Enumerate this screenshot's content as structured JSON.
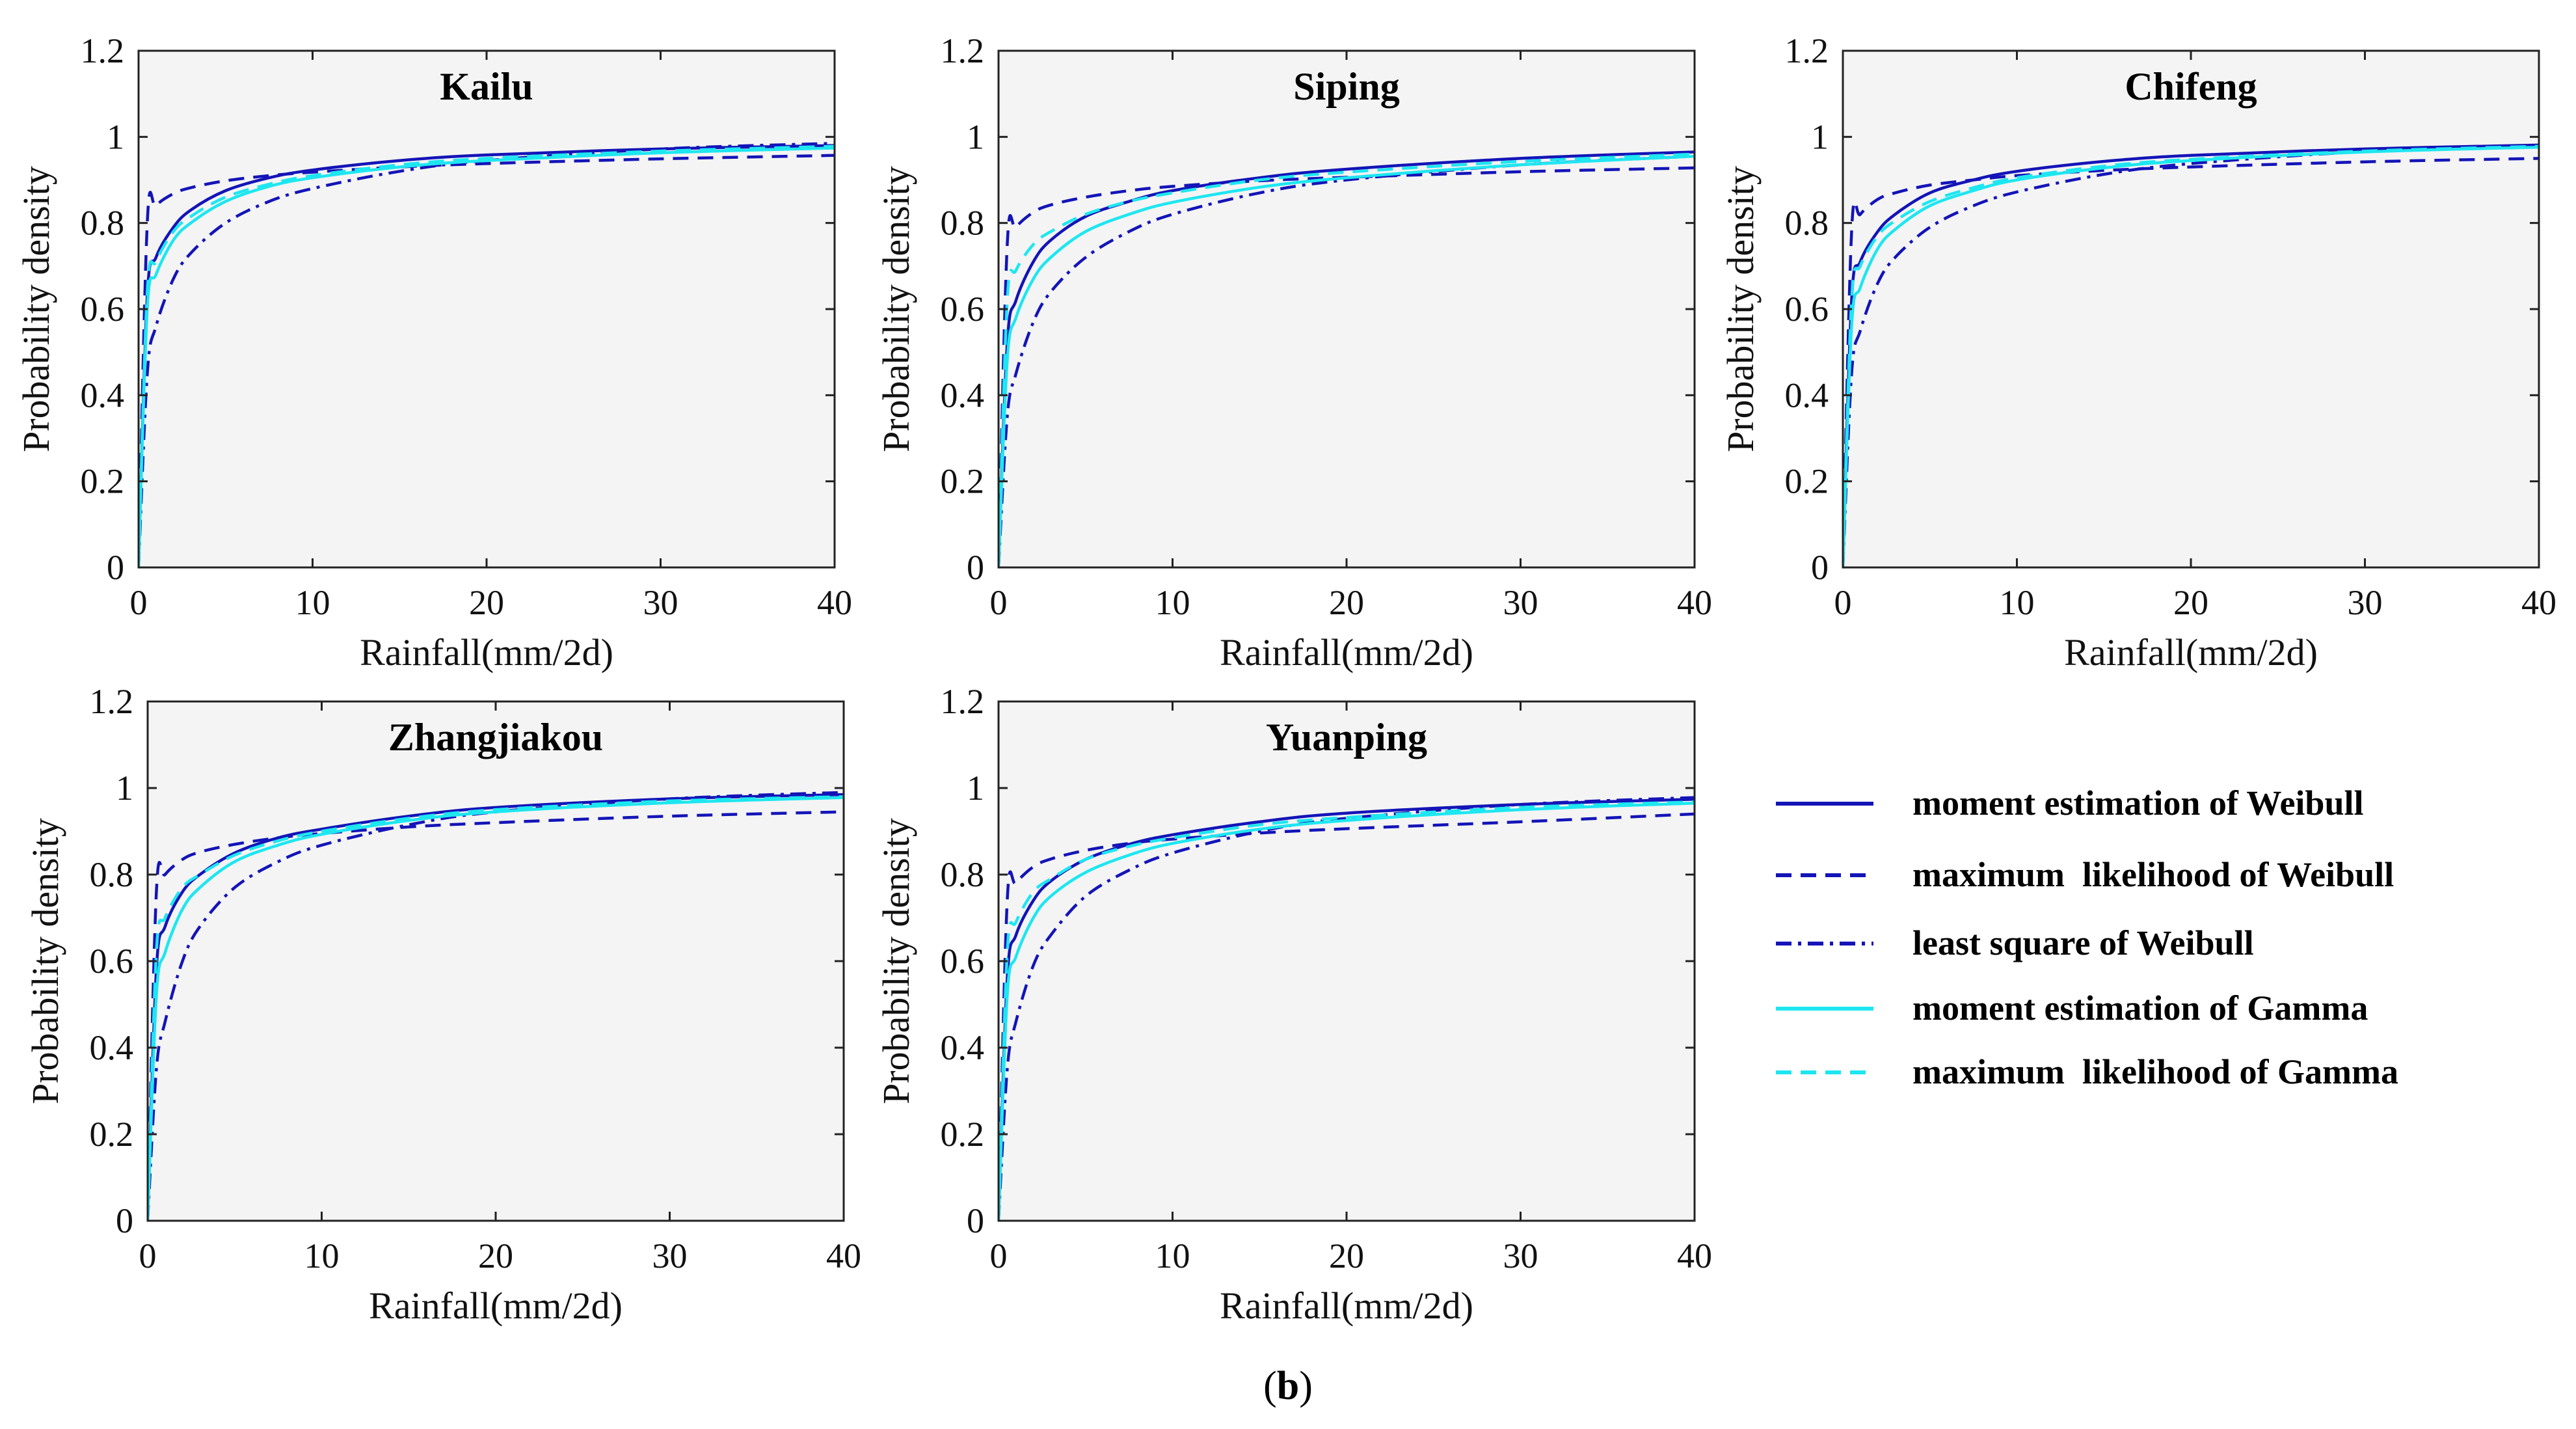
{
  "figure": {
    "caption_letter": "b"
  },
  "colors": {
    "dark_blue": "#1414b8",
    "cyan": "#1ee6f0",
    "panel_bg": "#f4f4f4",
    "axis": "#222222"
  },
  "legend": [
    {
      "label": "moment estimation of Weibull",
      "color": "#1414b8",
      "style": "solid"
    },
    {
      "label": "maximum  likelihood of Weibull",
      "color": "#1414b8",
      "style": "dashed"
    },
    {
      "label": "least square of Weibull",
      "color": "#1414b8",
      "style": "dashdot"
    },
    {
      "label": "moment estimation of Gamma",
      "color": "#1ee6f0",
      "style": "solid"
    },
    {
      "label": "maximum  likelihood of Gamma",
      "color": "#1ee6f0",
      "style": "dashed"
    }
  ],
  "chart_data": [
    {
      "type": "line",
      "title": "Kailu",
      "xlabel": "Rainfall(mm/2d)",
      "ylabel": "Probability density",
      "xlim": [
        0,
        40
      ],
      "ylim": [
        0,
        1.2
      ],
      "xticks": [
        "0",
        "10",
        "20",
        "30",
        "40"
      ],
      "yticks": [
        "0",
        "0.2",
        "0.4",
        "0.6",
        "0.8",
        "1",
        "1.2"
      ],
      "x": [
        0,
        0.5,
        1,
        2,
        3,
        5,
        7.5,
        10,
        15,
        20,
        30,
        40
      ],
      "series": [
        {
          "name": "moment estimation of Weibull",
          "values": [
            0,
            0.63,
            0.72,
            0.79,
            0.83,
            0.875,
            0.905,
            0.923,
            0.945,
            0.958,
            0.972,
            0.98
          ]
        },
        {
          "name": "maximum  likelihood of Weibull",
          "values": [
            0,
            0.8,
            0.84,
            0.868,
            0.882,
            0.898,
            0.91,
            0.918,
            0.93,
            0.938,
            0.949,
            0.957
          ]
        },
        {
          "name": "least square of Weibull",
          "values": [
            0,
            0.45,
            0.56,
            0.67,
            0.73,
            0.8,
            0.85,
            0.88,
            0.92,
            0.945,
            0.972,
            0.985
          ]
        },
        {
          "name": "moment estimation of Gamma",
          "values": [
            0,
            0.6,
            0.68,
            0.76,
            0.8,
            0.85,
            0.885,
            0.905,
            0.93,
            0.945,
            0.963,
            0.974
          ]
        },
        {
          "name": "maximum  likelihood of Gamma",
          "values": [
            0,
            0.64,
            0.71,
            0.78,
            0.815,
            0.86,
            0.89,
            0.91,
            0.935,
            0.95,
            0.967,
            0.978
          ]
        }
      ]
    },
    {
      "type": "line",
      "title": "Siping",
      "xlabel": "Rainfall(mm/2d)",
      "ylabel": "Probability density",
      "xlim": [
        0,
        40
      ],
      "ylim": [
        0,
        1.2
      ],
      "xticks": [
        "0",
        "10",
        "20",
        "30",
        "40"
      ],
      "yticks": [
        "0",
        "0.2",
        "0.4",
        "0.6",
        "0.8",
        "1",
        "1.2"
      ],
      "x": [
        0,
        0.5,
        1,
        2,
        3,
        5,
        7.5,
        10,
        15,
        20,
        30,
        40
      ],
      "series": [
        {
          "name": "moment estimation of Weibull",
          "values": [
            0,
            0.52,
            0.62,
            0.71,
            0.76,
            0.815,
            0.85,
            0.875,
            0.905,
            0.925,
            0.95,
            0.965
          ]
        },
        {
          "name": "maximum  likelihood of Weibull",
          "values": [
            0,
            0.75,
            0.79,
            0.825,
            0.842,
            0.86,
            0.875,
            0.885,
            0.898,
            0.906,
            0.919,
            0.928
          ]
        },
        {
          "name": "least square of Weibull",
          "values": [
            0,
            0.35,
            0.45,
            0.57,
            0.64,
            0.72,
            0.78,
            0.82,
            0.87,
            0.9,
            0.935,
            0.955
          ]
        },
        {
          "name": "moment estimation of Gamma",
          "values": [
            0,
            0.48,
            0.58,
            0.67,
            0.72,
            0.78,
            0.82,
            0.848,
            0.883,
            0.905,
            0.935,
            0.955
          ]
        },
        {
          "name": "maximum  likelihood of Gamma",
          "values": [
            0,
            0.62,
            0.69,
            0.75,
            0.78,
            0.82,
            0.85,
            0.87,
            0.9,
            0.918,
            0.943,
            0.96
          ]
        }
      ]
    },
    {
      "type": "line",
      "title": "Chifeng",
      "xlabel": "Rainfall(mm/2d)",
      "ylabel": "Probability density",
      "xlim": [
        0,
        40
      ],
      "ylim": [
        0,
        1.2
      ],
      "xticks": [
        "0",
        "10",
        "20",
        "30",
        "40"
      ],
      "yticks": [
        "0",
        "0.2",
        "0.4",
        "0.6",
        "0.8",
        "1",
        "1.2"
      ],
      "x": [
        0,
        0.5,
        1,
        2,
        3,
        5,
        7.5,
        10,
        15,
        20,
        30,
        40
      ],
      "series": [
        {
          "name": "moment estimation of Weibull",
          "values": [
            0,
            0.62,
            0.71,
            0.78,
            0.82,
            0.87,
            0.9,
            0.92,
            0.943,
            0.957,
            0.972,
            0.981
          ]
        },
        {
          "name": "maximum  likelihood of Weibull",
          "values": [
            0,
            0.78,
            0.82,
            0.855,
            0.87,
            0.888,
            0.9,
            0.91,
            0.922,
            0.93,
            0.942,
            0.95
          ]
        },
        {
          "name": "least square of Weibull",
          "values": [
            0,
            0.45,
            0.55,
            0.66,
            0.72,
            0.79,
            0.84,
            0.872,
            0.913,
            0.938,
            0.966,
            0.98
          ]
        },
        {
          "name": "moment estimation of Gamma",
          "values": [
            0,
            0.56,
            0.65,
            0.74,
            0.785,
            0.84,
            0.875,
            0.9,
            0.928,
            0.945,
            0.965,
            0.976
          ]
        },
        {
          "name": "maximum  likelihood of Gamma",
          "values": [
            0,
            0.62,
            0.7,
            0.77,
            0.805,
            0.85,
            0.882,
            0.905,
            0.932,
            0.948,
            0.967,
            0.978
          ]
        }
      ]
    },
    {
      "type": "line",
      "title": "Zhangjiakou",
      "xlabel": "Rainfall(mm/2d)",
      "ylabel": "Probability density",
      "xlim": [
        0,
        40
      ],
      "ylim": [
        0,
        1.2
      ],
      "xticks": [
        "0",
        "10",
        "20",
        "30",
        "40"
      ],
      "yticks": [
        "0",
        "0.2",
        "0.4",
        "0.6",
        "0.8",
        "1",
        "1.2"
      ],
      "x": [
        0,
        0.5,
        1,
        2,
        3,
        5,
        7.5,
        10,
        15,
        20,
        30,
        40
      ],
      "series": [
        {
          "name": "moment estimation of Weibull",
          "values": [
            0,
            0.58,
            0.68,
            0.76,
            0.8,
            0.85,
            0.885,
            0.905,
            0.935,
            0.955,
            0.975,
            0.985
          ]
        },
        {
          "name": "maximum  likelihood of Weibull",
          "values": [
            0,
            0.76,
            0.8,
            0.835,
            0.852,
            0.87,
            0.885,
            0.895,
            0.91,
            0.92,
            0.935,
            0.945
          ]
        },
        {
          "name": "least square of Weibull",
          "values": [
            0,
            0.35,
            0.46,
            0.6,
            0.68,
            0.77,
            0.83,
            0.868,
            0.915,
            0.945,
            0.975,
            0.99
          ]
        },
        {
          "name": "moment estimation of Gamma",
          "values": [
            0,
            0.52,
            0.62,
            0.72,
            0.77,
            0.83,
            0.868,
            0.893,
            0.925,
            0.945,
            0.966,
            0.978
          ]
        },
        {
          "name": "maximum  likelihood of Gamma",
          "values": [
            0,
            0.62,
            0.7,
            0.77,
            0.8,
            0.845,
            0.878,
            0.9,
            0.93,
            0.95,
            0.97,
            0.98
          ]
        }
      ]
    },
    {
      "type": "line",
      "title": "Yuanping",
      "xlabel": "Rainfall(mm/2d)",
      "ylabel": "Probability density",
      "xlim": [
        0,
        40
      ],
      "ylim": [
        0,
        1.2
      ],
      "xticks": [
        "0",
        "10",
        "20",
        "30",
        "40"
      ],
      "yticks": [
        "0",
        "0.2",
        "0.4",
        "0.6",
        "0.8",
        "1",
        "1.2"
      ],
      "x": [
        0,
        0.5,
        1,
        2,
        3,
        5,
        7.5,
        10,
        15,
        20,
        30,
        40
      ],
      "series": [
        {
          "name": "moment estimation of Weibull",
          "values": [
            0,
            0.56,
            0.66,
            0.74,
            0.785,
            0.835,
            0.87,
            0.892,
            0.922,
            0.942,
            0.962,
            0.974
          ]
        },
        {
          "name": "maximum  likelihood of Weibull",
          "values": [
            0,
            0.74,
            0.78,
            0.818,
            0.836,
            0.856,
            0.872,
            0.882,
            0.896,
            0.906,
            0.922,
            0.94
          ]
        },
        {
          "name": "least square of Weibull",
          "values": [
            0,
            0.35,
            0.46,
            0.59,
            0.66,
            0.75,
            0.81,
            0.85,
            0.9,
            0.93,
            0.962,
            0.978
          ]
        },
        {
          "name": "moment estimation of Gamma",
          "values": [
            0,
            0.52,
            0.61,
            0.7,
            0.75,
            0.805,
            0.845,
            0.872,
            0.905,
            0.925,
            0.95,
            0.965
          ]
        },
        {
          "name": "maximum  likelihood of Gamma",
          "values": [
            0,
            0.62,
            0.69,
            0.76,
            0.79,
            0.835,
            0.865,
            0.885,
            0.915,
            0.932,
            0.955,
            0.968
          ]
        }
      ]
    }
  ]
}
